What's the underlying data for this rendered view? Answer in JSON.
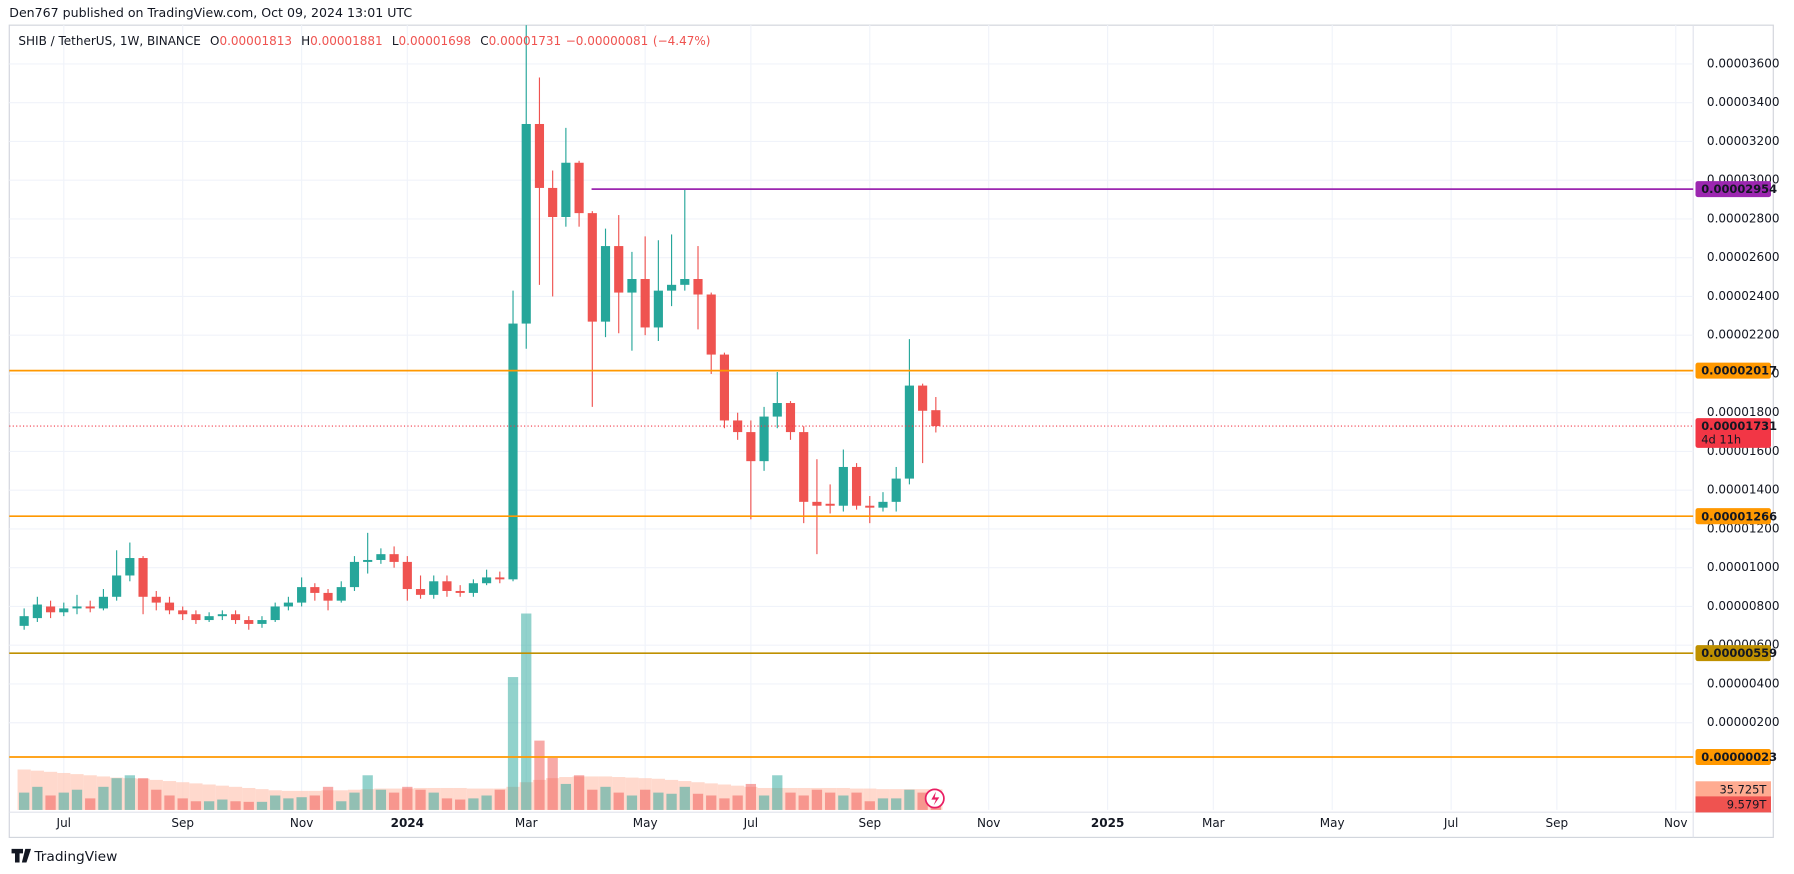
{
  "header": {
    "published": "Den767 published on TradingView.com, Oct 09, 2024 13:01 UTC",
    "footer": "TradingView"
  },
  "chart_data": {
    "type": "candlestick",
    "legend": {
      "symbol": "SHIB / TetherUS, 1W, BINANCE",
      "open_label": "O",
      "high_label": "H",
      "low_label": "L",
      "close_label": "C",
      "change": {
        "value": -8.1e-07,
        "label": "−0.00000081"
      },
      "change_percent": {
        "value": -4.47,
        "label": "(−4.47%)"
      }
    },
    "up_color": "#26a69a",
    "down_color": "#ef5350",
    "grid": true,
    "ylim": [
      -2.5e-06,
      3.8e-05
    ],
    "yticks": [
      {
        "value": 2e-06,
        "label": "0.00000200"
      },
      {
        "value": 4e-06,
        "label": "0.00000400"
      },
      {
        "value": 6e-06,
        "label": "0.00000600"
      },
      {
        "value": 8e-06,
        "label": "0.00000800"
      },
      {
        "value": 1e-05,
        "label": "0.00001000"
      },
      {
        "value": 1.2e-05,
        "label": "0.00001200"
      },
      {
        "value": 1.4e-05,
        "label": "0.00001400"
      },
      {
        "value": 1.6e-05,
        "label": "0.00001600"
      },
      {
        "value": 1.8e-05,
        "label": "0.00001800"
      },
      {
        "value": 2e-05,
        "label": "0.00002000"
      },
      {
        "value": 2.2e-05,
        "label": "0.00002200"
      },
      {
        "value": 2.4e-05,
        "label": "0.00002400"
      },
      {
        "value": 2.6e-05,
        "label": "0.00002600"
      },
      {
        "value": 2.8e-05,
        "label": "0.00002800"
      },
      {
        "value": 3e-05,
        "label": "0.00003000"
      },
      {
        "value": 3.2e-05,
        "label": "0.00003200"
      },
      {
        "value": 3.4e-05,
        "label": "0.00003400"
      },
      {
        "value": 3.6e-05,
        "label": "0.00003600"
      }
    ],
    "categories": [
      null,
      null,
      null,
      "Jul",
      null,
      null,
      null,
      null,
      null,
      null,
      null,
      null,
      "Sep",
      null,
      null,
      null,
      null,
      null,
      null,
      null,
      null,
      "Nov",
      null,
      null,
      null,
      null,
      null,
      null,
      null,
      "2024",
      null,
      null,
      null,
      null,
      null,
      null,
      null,
      null,
      "Mar",
      null,
      null,
      null,
      null,
      null,
      null,
      null,
      null,
      "May",
      null,
      null,
      null,
      null,
      null,
      null,
      null,
      "Jul",
      null,
      null,
      null,
      null,
      null,
      null,
      null,
      null,
      "Sep",
      null,
      null,
      null,
      null,
      null,
      null,
      null,
      null,
      "Nov",
      null,
      null,
      null,
      null,
      null,
      null,
      null,
      null,
      "2025",
      null,
      null,
      null,
      null,
      null,
      null,
      null,
      "Mar",
      null,
      null,
      null,
      null,
      null,
      null,
      null,
      null,
      "May",
      null,
      null,
      null,
      null,
      null,
      null,
      null,
      null,
      "Jul",
      null,
      null,
      null,
      null,
      null,
      null,
      null,
      "Sep",
      null,
      null,
      null,
      null,
      null,
      null,
      null,
      null,
      "Nov"
    ],
    "open": [
      7e-06,
      7.4e-06,
      8e-06,
      7.7e-06,
      7.9e-06,
      8e-06,
      7.9e-06,
      8.5e-06,
      9.6e-06,
      1.05e-05,
      8.5e-06,
      8.2e-06,
      7.8e-06,
      7.6e-06,
      7.3e-06,
      7.5e-06,
      7.6e-06,
      7.3e-06,
      7.1e-06,
      7.3e-06,
      8e-06,
      8.2e-06,
      9e-06,
      8.7e-06,
      8.3e-06,
      9e-06,
      1.03e-05,
      1.04e-05,
      1.07e-05,
      1.03e-05,
      8.9e-06,
      8.6e-06,
      9.3e-06,
      8.8e-06,
      8.7e-06,
      9.2e-06,
      9.5e-06,
      9.4e-06,
      2.26e-05,
      3.29e-05,
      2.96e-05,
      2.81e-05,
      3.09e-05,
      2.83e-05,
      2.27e-05,
      2.66e-05,
      2.42e-05,
      2.49e-05,
      2.24e-05,
      2.43e-05,
      2.46e-05,
      2.49e-05,
      2.41e-05,
      2.1e-05,
      1.76e-05,
      1.7e-05,
      1.55e-05,
      1.78e-05,
      1.85e-05,
      1.7e-05,
      1.34e-05,
      1.33e-05,
      1.32e-05,
      1.52e-05,
      1.32e-05,
      1.31e-05,
      1.34e-05,
      1.46e-05,
      1.94e-05,
      1.813e-05,
      null,
      null,
      null,
      null,
      null,
      null,
      null,
      null,
      null,
      null,
      null,
      null,
      null,
      null,
      null,
      null,
      null,
      null,
      null,
      null,
      null,
      null,
      null,
      null,
      null,
      null,
      null,
      null,
      null,
      null,
      null,
      null,
      null,
      null,
      null,
      null,
      null,
      null,
      null,
      null,
      null,
      null,
      null,
      null,
      null,
      null,
      null,
      null,
      null,
      null,
      null,
      null,
      null,
      null,
      null,
      null
    ],
    "high": [
      7.9e-06,
      8.5e-06,
      8.3e-06,
      8.2e-06,
      8.6e-06,
      8.3e-06,
      8.9e-06,
      1.09e-05,
      1.13e-05,
      1.06e-05,
      8.8e-06,
      8.5e-06,
      8e-06,
      7.8e-06,
      7.7e-06,
      7.8e-06,
      7.8e-06,
      7.5e-06,
      7.5e-06,
      8.2e-06,
      8.5e-06,
      9.5e-06,
      9.2e-06,
      8.9e-06,
      9.3e-06,
      1.06e-05,
      1.18e-05,
      1.1e-05,
      1.11e-05,
      1.06e-05,
      9.6e-06,
      9.6e-06,
      9.6e-06,
      9.1e-06,
      9.4e-06,
      9.9e-06,
      9.8e-06,
      2.43e-05,
      3.8e-05,
      3.53e-05,
      3.05e-05,
      3.27e-05,
      3.1e-05,
      2.84e-05,
      2.75e-05,
      2.82e-05,
      2.63e-05,
      2.71e-05,
      2.69e-05,
      2.72e-05,
      2.95e-05,
      2.66e-05,
      2.42e-05,
      2.11e-05,
      1.8e-05,
      1.76e-05,
      1.83e-05,
      2.01e-05,
      1.86e-05,
      1.73e-05,
      1.56e-05,
      1.43e-05,
      1.61e-05,
      1.54e-05,
      1.37e-05,
      1.39e-05,
      1.52e-05,
      2.18e-05,
      1.95e-05,
      1.881e-05,
      null,
      null,
      null,
      null,
      null,
      null,
      null,
      null,
      null,
      null,
      null,
      null,
      null,
      null,
      null,
      null,
      null,
      null,
      null,
      null,
      null,
      null,
      null,
      null,
      null,
      null,
      null,
      null,
      null,
      null,
      null,
      null,
      null,
      null,
      null,
      null,
      null,
      null,
      null,
      null,
      null,
      null,
      null,
      null,
      null,
      null,
      null,
      null,
      null,
      null,
      null,
      null,
      null,
      null,
      null,
      null
    ],
    "low": [
      6.8e-06,
      7.2e-06,
      7.4e-06,
      7.5e-06,
      7.6e-06,
      7.7e-06,
      7.8e-06,
      8.3e-06,
      9.3e-06,
      7.6e-06,
      7.8e-06,
      7.6e-06,
      7.3e-06,
      7.1e-06,
      7.2e-06,
      7.3e-06,
      7.1e-06,
      6.8e-06,
      6.9e-06,
      7.2e-06,
      7.8e-06,
      8e-06,
      8.3e-06,
      7.8e-06,
      8.2e-06,
      8.8e-06,
      9.7e-06,
      1.02e-05,
      1e-05,
      8.3e-06,
      8.4e-06,
      8.4e-06,
      8.5e-06,
      8.5e-06,
      8.5e-06,
      9.1e-06,
      9.2e-06,
      9.3e-06,
      2.13e-05,
      2.46e-05,
      2.4e-05,
      2.76e-05,
      2.76e-05,
      1.83e-05,
      2.19e-05,
      2.21e-05,
      2.12e-05,
      2.2e-05,
      2.17e-05,
      2.35e-05,
      2.43e-05,
      2.23e-05,
      2e-05,
      1.72e-05,
      1.66e-05,
      1.25e-05,
      1.5e-05,
      1.72e-05,
      1.66e-05,
      1.23e-05,
      1.07e-05,
      1.28e-05,
      1.29e-05,
      1.3e-05,
      1.23e-05,
      1.29e-05,
      1.29e-05,
      1.43e-05,
      1.54e-05,
      1.698e-05,
      null,
      null,
      null,
      null,
      null,
      null,
      null,
      null,
      null,
      null,
      null,
      null,
      null,
      null,
      null,
      null,
      null,
      null,
      null,
      null,
      null,
      null,
      null,
      null,
      null,
      null,
      null,
      null,
      null,
      null,
      null,
      null,
      null,
      null,
      null,
      null,
      null,
      null,
      null,
      null,
      null,
      null,
      null,
      null,
      null,
      null,
      null,
      null,
      null,
      null,
      null,
      null,
      null,
      null,
      null,
      null
    ],
    "close": [
      7.5e-06,
      8.1e-06,
      7.7e-06,
      7.9e-06,
      8e-06,
      7.9e-06,
      8.5e-06,
      9.6e-06,
      1.05e-05,
      8.5e-06,
      8.2e-06,
      7.8e-06,
      7.6e-06,
      7.3e-06,
      7.5e-06,
      7.6e-06,
      7.3e-06,
      7.1e-06,
      7.3e-06,
      8e-06,
      8.2e-06,
      9e-06,
      8.7e-06,
      8.3e-06,
      9e-06,
      1.03e-05,
      1.04e-05,
      1.07e-05,
      1.03e-05,
      8.9e-06,
      8.6e-06,
      9.3e-06,
      8.8e-06,
      8.7e-06,
      9.2e-06,
      9.5e-06,
      9.4e-06,
      2.26e-05,
      3.29e-05,
      2.96e-05,
      2.81e-05,
      3.09e-05,
      2.83e-05,
      2.27e-05,
      2.66e-05,
      2.42e-05,
      2.49e-05,
      2.24e-05,
      2.43e-05,
      2.46e-05,
      2.49e-05,
      2.41e-05,
      2.1e-05,
      1.76e-05,
      1.7e-05,
      1.55e-05,
      1.78e-05,
      1.85e-05,
      1.7e-05,
      1.34e-05,
      1.32e-05,
      1.32e-05,
      1.52e-05,
      1.32e-05,
      1.31e-05,
      1.34e-05,
      1.46e-05,
      1.94e-05,
      1.81e-05,
      1.731e-05,
      null,
      null,
      null,
      null,
      null,
      null,
      null,
      null,
      null,
      null,
      null,
      null,
      null,
      null,
      null,
      null,
      null,
      null,
      null,
      null,
      null,
      null,
      null,
      null,
      null,
      null,
      null,
      null,
      null,
      null,
      null,
      null,
      null,
      null,
      null,
      null,
      null,
      null,
      null,
      null,
      null,
      null,
      null,
      null,
      null,
      null,
      null,
      null,
      null,
      null,
      null,
      null,
      null,
      null,
      null,
      null
    ],
    "vlim": [
      0,
      400
    ],
    "volume": {
      "values": [
        30,
        40,
        25,
        30,
        35,
        20,
        40,
        55,
        60,
        55,
        35,
        25,
        20,
        15,
        15,
        18,
        15,
        14,
        14,
        25,
        20,
        22,
        25,
        40,
        15,
        30,
        60,
        35,
        30,
        40,
        35,
        30,
        20,
        18,
        20,
        25,
        35,
        230,
        340,
        120,
        90,
        45,
        60,
        35,
        40,
        30,
        25,
        35,
        30,
        28,
        40,
        28,
        25,
        20,
        25,
        45,
        25,
        60,
        30,
        25,
        35,
        30,
        25,
        30,
        15,
        20,
        20,
        35,
        30,
        9.579,
        null,
        null,
        null,
        null,
        null,
        null,
        null,
        null,
        null,
        null,
        null,
        null,
        null,
        null,
        null,
        null,
        null,
        null,
        null,
        null,
        null,
        null,
        null,
        null,
        null,
        null,
        null,
        null,
        null,
        null,
        null,
        null,
        null,
        null,
        null,
        null,
        null,
        null,
        null,
        null,
        null,
        null,
        null,
        null,
        null,
        null,
        null,
        null,
        null,
        null,
        null,
        null,
        null,
        null,
        null,
        null
      ],
      "value_labels": [
        null,
        null,
        null,
        null,
        null,
        null,
        null,
        null,
        null,
        null,
        null,
        null,
        null,
        null,
        null,
        null,
        null,
        null,
        null,
        null,
        null,
        null,
        null,
        null,
        null,
        null,
        null,
        null,
        null,
        null,
        null,
        null,
        null,
        null,
        null,
        null,
        null,
        null,
        null,
        null,
        null,
        null,
        null,
        null,
        null,
        null,
        null,
        null,
        null,
        null,
        null,
        null,
        null,
        null,
        null,
        null,
        null,
        null,
        null,
        null,
        null,
        null,
        null,
        null,
        null,
        null,
        null,
        null,
        null,
        "9.579T",
        null,
        null,
        null,
        null,
        null,
        null,
        null,
        null,
        null,
        null,
        null,
        null,
        null,
        null,
        null,
        null,
        null,
        null,
        null,
        null,
        null,
        null,
        null,
        null,
        null,
        null,
        null,
        null,
        null,
        null,
        null,
        null,
        null,
        null,
        null,
        null,
        null,
        null,
        null,
        null,
        null,
        null,
        null,
        null,
        null,
        null,
        null,
        null,
        null,
        null,
        null,
        null,
        null,
        null,
        null,
        null
      ],
      "label_color": "#ef5350"
    },
    "volume_ma": {
      "color": "#ffccbc",
      "values": [
        70,
        68,
        66,
        64,
        62,
        60,
        58,
        56,
        55,
        54,
        52,
        50,
        48,
        46,
        44,
        42,
        40,
        38,
        36,
        34,
        33,
        33,
        33,
        34,
        34,
        35,
        36,
        37,
        37,
        37,
        38,
        38,
        38,
        38,
        37,
        37,
        37,
        40,
        48,
        52,
        55,
        57,
        58,
        58,
        58,
        57,
        56,
        55,
        54,
        52,
        50,
        48,
        46,
        44,
        42,
        40,
        38,
        38,
        38,
        38,
        38,
        38,
        38,
        37,
        37,
        36,
        36,
        36,
        36,
        35.725,
        null,
        null,
        null,
        null,
        null,
        null,
        null,
        null,
        null,
        null,
        null,
        null,
        null,
        null,
        null,
        null,
        null,
        null,
        null,
        null,
        null,
        null,
        null,
        null,
        null,
        null,
        null,
        null,
        null,
        null,
        null,
        null,
        null,
        null,
        null,
        null,
        null,
        null,
        null,
        null,
        null,
        null,
        null,
        null,
        null,
        null,
        null,
        null,
        null,
        null,
        null,
        null,
        null,
        null,
        null,
        null
      ],
      "value_labels": [
        null,
        null,
        null,
        null,
        null,
        null,
        null,
        null,
        null,
        null,
        null,
        null,
        null,
        null,
        null,
        null,
        null,
        null,
        null,
        null,
        null,
        null,
        null,
        null,
        null,
        null,
        null,
        null,
        null,
        null,
        null,
        null,
        null,
        null,
        null,
        null,
        null,
        null,
        null,
        null,
        null,
        null,
        null,
        null,
        null,
        null,
        null,
        null,
        null,
        null,
        null,
        null,
        null,
        null,
        null,
        null,
        null,
        null,
        null,
        null,
        null,
        null,
        null,
        null,
        null,
        null,
        null,
        null,
        null,
        "35.725T",
        null,
        null,
        null,
        null,
        null,
        null,
        null,
        null,
        null,
        null,
        null,
        null,
        null,
        null,
        null,
        null,
        null,
        null,
        null,
        null,
        null,
        null,
        null,
        null,
        null,
        null,
        null,
        null,
        null,
        null,
        null,
        null,
        null,
        null,
        null,
        null,
        null,
        null,
        null,
        null,
        null,
        null,
        null,
        null,
        null,
        null,
        null,
        null,
        null,
        null,
        null,
        null,
        null,
        null,
        null,
        null
      ],
      "label_color": "#ffab91"
    },
    "levels": [
      {
        "value": 2.954e-05,
        "label": "0.00002954",
        "color": "#9c27b0",
        "text_color": "#ffffff"
      },
      {
        "value": 2.017e-05,
        "label": "0.00002017",
        "color": "#ff9800",
        "text_color": "#131722"
      },
      {
        "value": 1.266e-05,
        "label": "0.00001266",
        "color": "#ff9800",
        "text_color": "#131722"
      },
      {
        "value": 5.59e-06,
        "label": "0.00000559",
        "color": "#bf9000",
        "text_color": "#ffffff"
      },
      {
        "value": 2.3e-07,
        "label": "0.00000023",
        "color": "#ff9800",
        "text_color": "#131722"
      }
    ],
    "current_price": {
      "value": 1.731e-05,
      "label": "0.00001731",
      "countdown": "4d 11h",
      "color": "#f23645"
    }
  }
}
